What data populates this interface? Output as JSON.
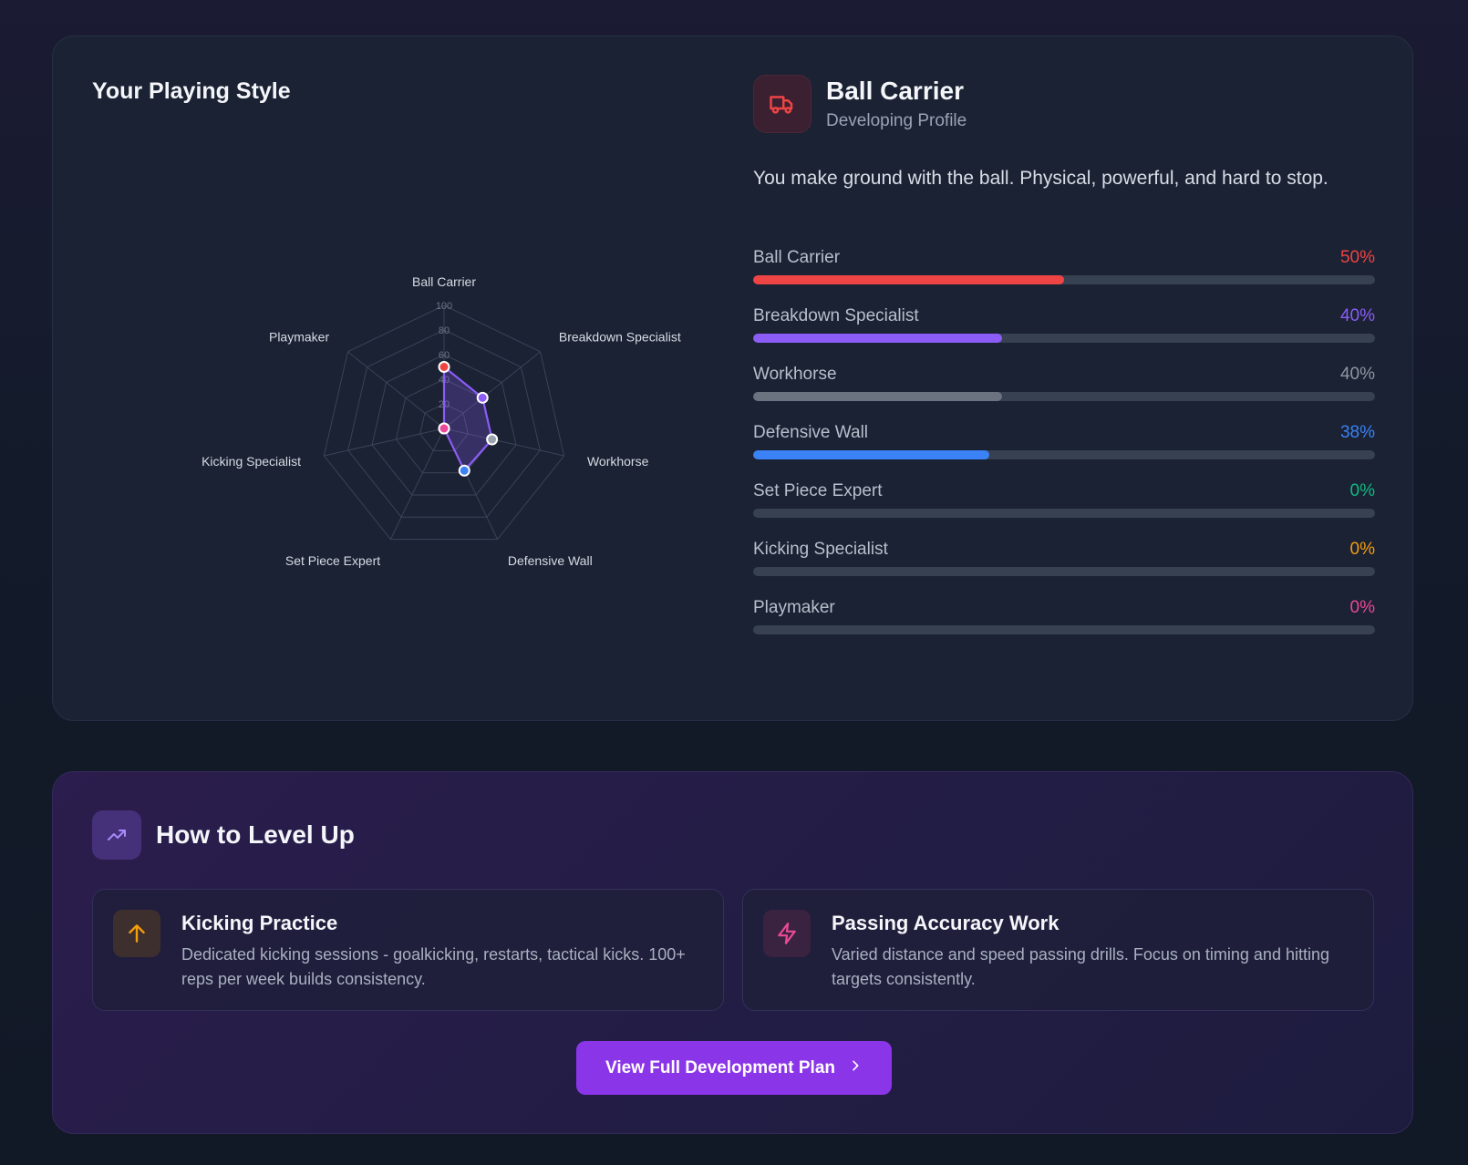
{
  "style_card": {
    "title": "Your Playing Style",
    "profile": {
      "icon": "truck-icon",
      "name": "Ball Carrier",
      "subtitle": "Developing Profile",
      "description": "You make ground with the ball. Physical, powerful, and hard to stop."
    },
    "attributes": [
      {
        "label": "Ball Carrier",
        "value": 50,
        "display": "50%",
        "color": "#ef4444",
        "text_color": "#ef4444"
      },
      {
        "label": "Breakdown Specialist",
        "value": 40,
        "display": "40%",
        "color": "#8b5cf6",
        "text_color": "#8b5cf6"
      },
      {
        "label": "Workhorse",
        "value": 40,
        "display": "40%",
        "color": "#6b7280",
        "text_color": "#8f96a3"
      },
      {
        "label": "Defensive Wall",
        "value": 38,
        "display": "38%",
        "color": "#3b82f6",
        "text_color": "#3b82f6"
      },
      {
        "label": "Set Piece Expert",
        "value": 0,
        "display": "0%",
        "color": "#10b981",
        "text_color": "#10b981"
      },
      {
        "label": "Kicking Specialist",
        "value": 0,
        "display": "0%",
        "color": "#f59e0b",
        "text_color": "#f59e0b"
      },
      {
        "label": "Playmaker",
        "value": 0,
        "display": "0%",
        "color": "#ec4899",
        "text_color": "#ec4899"
      }
    ]
  },
  "chart_data": {
    "type": "radar",
    "axes": [
      "Ball Carrier",
      "Breakdown Specialist",
      "Workhorse",
      "Defensive Wall",
      "Set Piece Expert",
      "Kicking Specialist",
      "Playmaker"
    ],
    "values": [
      50,
      40,
      40,
      38,
      0,
      0,
      0
    ],
    "point_colors": [
      "#ef4444",
      "#8b5cf6",
      "#9ca3af",
      "#3b82f6",
      "#10b981",
      "#f59e0b",
      "#ec4899"
    ],
    "rlim": [
      0,
      100
    ],
    "rticks": [
      20,
      40,
      60,
      80,
      100
    ],
    "series_color": "#8b5cf6",
    "grid": true
  },
  "level_up": {
    "title": "How to Level Up",
    "icon": "trending-up-icon",
    "tips": [
      {
        "icon": "arrow-up-icon",
        "title": "Kicking Practice",
        "text": "Dedicated kicking sessions - goalkicking, restarts, tactical kicks. 100+ reps per week builds consistency."
      },
      {
        "icon": "lightning-icon",
        "title": "Passing Accuracy Work",
        "text": "Varied distance and speed passing drills. Focus on timing and hitting targets consistently."
      }
    ],
    "cta_label": "View Full Development Plan",
    "cta_icon": "chevron-right-icon"
  }
}
